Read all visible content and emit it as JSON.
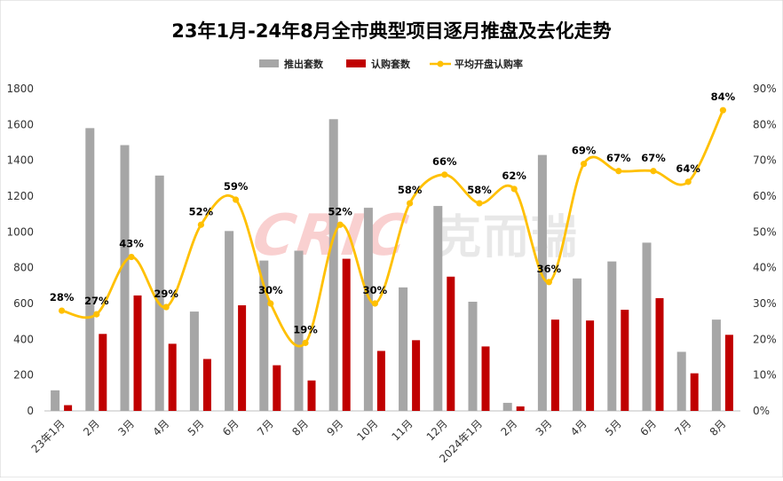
{
  "chart_data": {
    "type": "bar+line",
    "title": "23年1月-24年8月全市典型项目逐月推盘及去化走势",
    "categories": [
      "23年1月",
      "2月",
      "3月",
      "4月",
      "5月",
      "6月",
      "7月",
      "8月",
      "9月",
      "10月",
      "11月",
      "12月",
      "2024年1月",
      "2月",
      "3月",
      "4月",
      "5月",
      "6月",
      "7月",
      "8月"
    ],
    "series": [
      {
        "name": "推出套数",
        "type": "bar",
        "axis": "left",
        "color": "#a6a6a6",
        "values": [
          115,
          1580,
          1485,
          1315,
          555,
          1005,
          840,
          895,
          1630,
          1135,
          690,
          1145,
          610,
          45,
          1430,
          740,
          835,
          940,
          330,
          510
        ]
      },
      {
        "name": "认购套数",
        "type": "bar",
        "axis": "left",
        "color": "#c00000",
        "values": [
          32,
          430,
          645,
          375,
          290,
          590,
          255,
          170,
          850,
          335,
          395,
          750,
          360,
          25,
          510,
          505,
          565,
          630,
          210,
          425
        ]
      },
      {
        "name": "平均开盘认购率",
        "type": "line",
        "axis": "right",
        "color": "#ffc000",
        "values": [
          28,
          27,
          43,
          29,
          52,
          59,
          30,
          19,
          52,
          30,
          58,
          66,
          58,
          62,
          36,
          69,
          67,
          67,
          64,
          84
        ],
        "labels": [
          "28%",
          "27%",
          "43%",
          "29%",
          "52%",
          "59%",
          "30%",
          "19%",
          "52%",
          "30%",
          "58%",
          "66%",
          "58%",
          "62%",
          "36%",
          "69%",
          "67%",
          "67%",
          "64%",
          "84%"
        ]
      }
    ],
    "y_left": {
      "min": 0,
      "max": 1800,
      "ticks": [
        "0",
        "200",
        "400",
        "600",
        "800",
        "1000",
        "1200",
        "1400",
        "1600",
        "1800"
      ]
    },
    "y_right": {
      "min": 0,
      "max": 90,
      "ticks": [
        "0%",
        "10%",
        "20%",
        "30%",
        "40%",
        "50%",
        "60%",
        "70%",
        "80%",
        "90%"
      ]
    },
    "legend_position": "top-center",
    "grid": false,
    "watermark": "CRIC 克而瑞"
  }
}
